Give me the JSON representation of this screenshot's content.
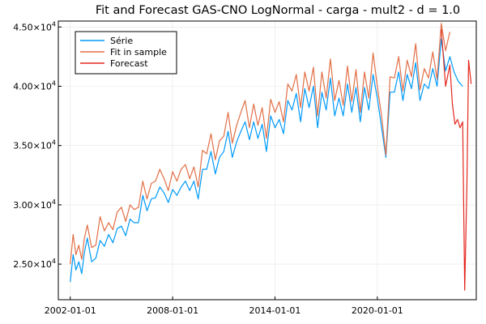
{
  "chart_data": {
    "type": "line",
    "title": "Fit and Forecast GAS-CNO LogNormal - carga - mult2 - d = 1.0",
    "xlabel": "",
    "ylabel": "",
    "xlim": [
      2001.3,
      2025.8
    ],
    "ylim": [
      22000,
      45500
    ],
    "grid": true,
    "legend_position": "top-left",
    "x_ticks": [
      {
        "value": 2002.0,
        "label": "2002-01-01"
      },
      {
        "value": 2008.0,
        "label": "2008-01-01"
      },
      {
        "value": 2014.0,
        "label": "2014-01-01"
      },
      {
        "value": 2020.0,
        "label": "2020-01-01"
      }
    ],
    "y_ticks": [
      {
        "value": 25000,
        "mantissa": "2.50",
        "exp": "4"
      },
      {
        "value": 30000,
        "mantissa": "3.00",
        "exp": "4"
      },
      {
        "value": 35000,
        "mantissa": "3.50",
        "exp": "4"
      },
      {
        "value": 40000,
        "mantissa": "4.00",
        "exp": "4"
      },
      {
        "value": 45000,
        "mantissa": "4.50",
        "exp": "4"
      }
    ],
    "series": [
      {
        "name": "Série",
        "color": "#009AFA",
        "x": [
          2002.0,
          2002.17,
          2002.33,
          2002.5,
          2002.67,
          2002.83,
          2003.0,
          2003.25,
          2003.5,
          2003.75,
          2004.0,
          2004.25,
          2004.5,
          2004.75,
          2005.0,
          2005.25,
          2005.5,
          2005.75,
          2006.0,
          2006.25,
          2006.5,
          2006.75,
          2007.0,
          2007.25,
          2007.5,
          2007.75,
          2008.0,
          2008.25,
          2008.5,
          2008.75,
          2009.0,
          2009.25,
          2009.5,
          2009.75,
          2010.0,
          2010.25,
          2010.5,
          2010.75,
          2011.0,
          2011.25,
          2011.5,
          2011.75,
          2012.0,
          2012.25,
          2012.5,
          2012.75,
          2013.0,
          2013.25,
          2013.5,
          2013.75,
          2014.0,
          2014.25,
          2014.5,
          2014.75,
          2015.0,
          2015.25,
          2015.5,
          2015.75,
          2016.0,
          2016.25,
          2016.5,
          2016.75,
          2017.0,
          2017.25,
          2017.5,
          2017.75,
          2018.0,
          2018.25,
          2018.5,
          2018.75,
          2019.0,
          2019.25,
          2019.5,
          2019.75,
          2020.0,
          2020.25,
          2020.5,
          2020.75,
          2021.0,
          2021.25,
          2021.5,
          2021.75,
          2022.0,
          2022.25,
          2022.5,
          2022.75,
          2023.0,
          2023.25,
          2023.5,
          2023.75,
          2024.0,
          2024.25,
          2024.5,
          2024.75,
          2025.0
        ],
        "y": [
          23500,
          25800,
          24500,
          25200,
          24200,
          26000,
          27200,
          25200,
          25500,
          27000,
          26500,
          27500,
          26800,
          28000,
          28200,
          27400,
          28800,
          28500,
          28500,
          30800,
          29500,
          30500,
          30600,
          31500,
          31000,
          30200,
          31300,
          30800,
          31500,
          32000,
          31200,
          32000,
          30500,
          33000,
          33000,
          34500,
          32600,
          34000,
          34500,
          36200,
          34000,
          35300,
          36200,
          37000,
          35500,
          37000,
          35600,
          36800,
          34500,
          37500,
          36500,
          37200,
          36000,
          38800,
          38000,
          39400,
          37000,
          39800,
          38200,
          40000,
          36500,
          39500,
          38000,
          40700,
          37500,
          39000,
          37500,
          40200,
          37800,
          39900,
          37000,
          39900,
          38000,
          41000,
          39000,
          36500,
          34000,
          39500,
          39500,
          41200,
          38800,
          41000,
          39800,
          42000,
          38800,
          40200,
          39800,
          41500,
          40000,
          44000,
          41300,
          42500,
          41200,
          40400,
          40000
        ]
      },
      {
        "name": "Fit in sample",
        "color": "#E26F46",
        "x": [
          2002.0,
          2002.17,
          2002.33,
          2002.5,
          2002.67,
          2002.83,
          2003.0,
          2003.25,
          2003.5,
          2003.75,
          2004.0,
          2004.25,
          2004.5,
          2004.75,
          2005.0,
          2005.25,
          2005.5,
          2005.75,
          2006.0,
          2006.25,
          2006.5,
          2006.75,
          2007.0,
          2007.25,
          2007.5,
          2007.75,
          2008.0,
          2008.25,
          2008.5,
          2008.75,
          2009.0,
          2009.25,
          2009.5,
          2009.75,
          2010.0,
          2010.25,
          2010.5,
          2010.75,
          2011.0,
          2011.25,
          2011.5,
          2011.75,
          2012.0,
          2012.25,
          2012.5,
          2012.75,
          2013.0,
          2013.25,
          2013.5,
          2013.75,
          2014.0,
          2014.25,
          2014.5,
          2014.75,
          2015.0,
          2015.25,
          2015.5,
          2015.75,
          2016.0,
          2016.25,
          2016.5,
          2016.75,
          2017.0,
          2017.25,
          2017.5,
          2017.75,
          2018.0,
          2018.25,
          2018.5,
          2018.75,
          2019.0,
          2019.25,
          2019.5,
          2019.75,
          2020.0,
          2020.25,
          2020.5,
          2020.75,
          2021.0,
          2021.25,
          2021.5,
          2021.75,
          2022.0,
          2022.25,
          2022.5,
          2022.75,
          2023.0,
          2023.25,
          2023.5,
          2023.75,
          2024.0,
          2024.25
        ],
        "y": [
          25000,
          27500,
          25800,
          26600,
          25400,
          27200,
          28300,
          26400,
          26600,
          29000,
          27800,
          28500,
          27900,
          29400,
          29800,
          28600,
          30000,
          29600,
          29800,
          32000,
          30500,
          31800,
          32000,
          33000,
          32200,
          31200,
          32800,
          32000,
          33000,
          33400,
          32200,
          33200,
          31500,
          34600,
          34300,
          36000,
          33800,
          35400,
          35800,
          37800,
          35200,
          36700,
          37800,
          38800,
          36500,
          38500,
          36700,
          38200,
          35600,
          38900,
          37800,
          38700,
          37000,
          40200,
          39600,
          41000,
          38200,
          41200,
          39600,
          41600,
          37500,
          41200,
          39000,
          42300,
          38800,
          40500,
          38400,
          41700,
          38700,
          41400,
          37800,
          41200,
          39000,
          42800,
          40000,
          37500,
          34200,
          40800,
          40700,
          42500,
          39600,
          42200,
          40800,
          43600,
          39700,
          41500,
          40700,
          42900,
          40600,
          45300,
          43000,
          44600
        ]
      },
      {
        "name": "Forecast",
        "color": "#E3281E",
        "x": [
          2023.75,
          2024.0,
          2024.25,
          2024.4,
          2024.55,
          2024.7,
          2024.85,
          2025.0,
          2025.12,
          2025.25,
          2025.35,
          2025.5
        ],
        "y": [
          44800,
          40000,
          41800,
          38500,
          36800,
          37200,
          36500,
          37000,
          22800,
          31500,
          42200,
          40200
        ]
      }
    ]
  }
}
